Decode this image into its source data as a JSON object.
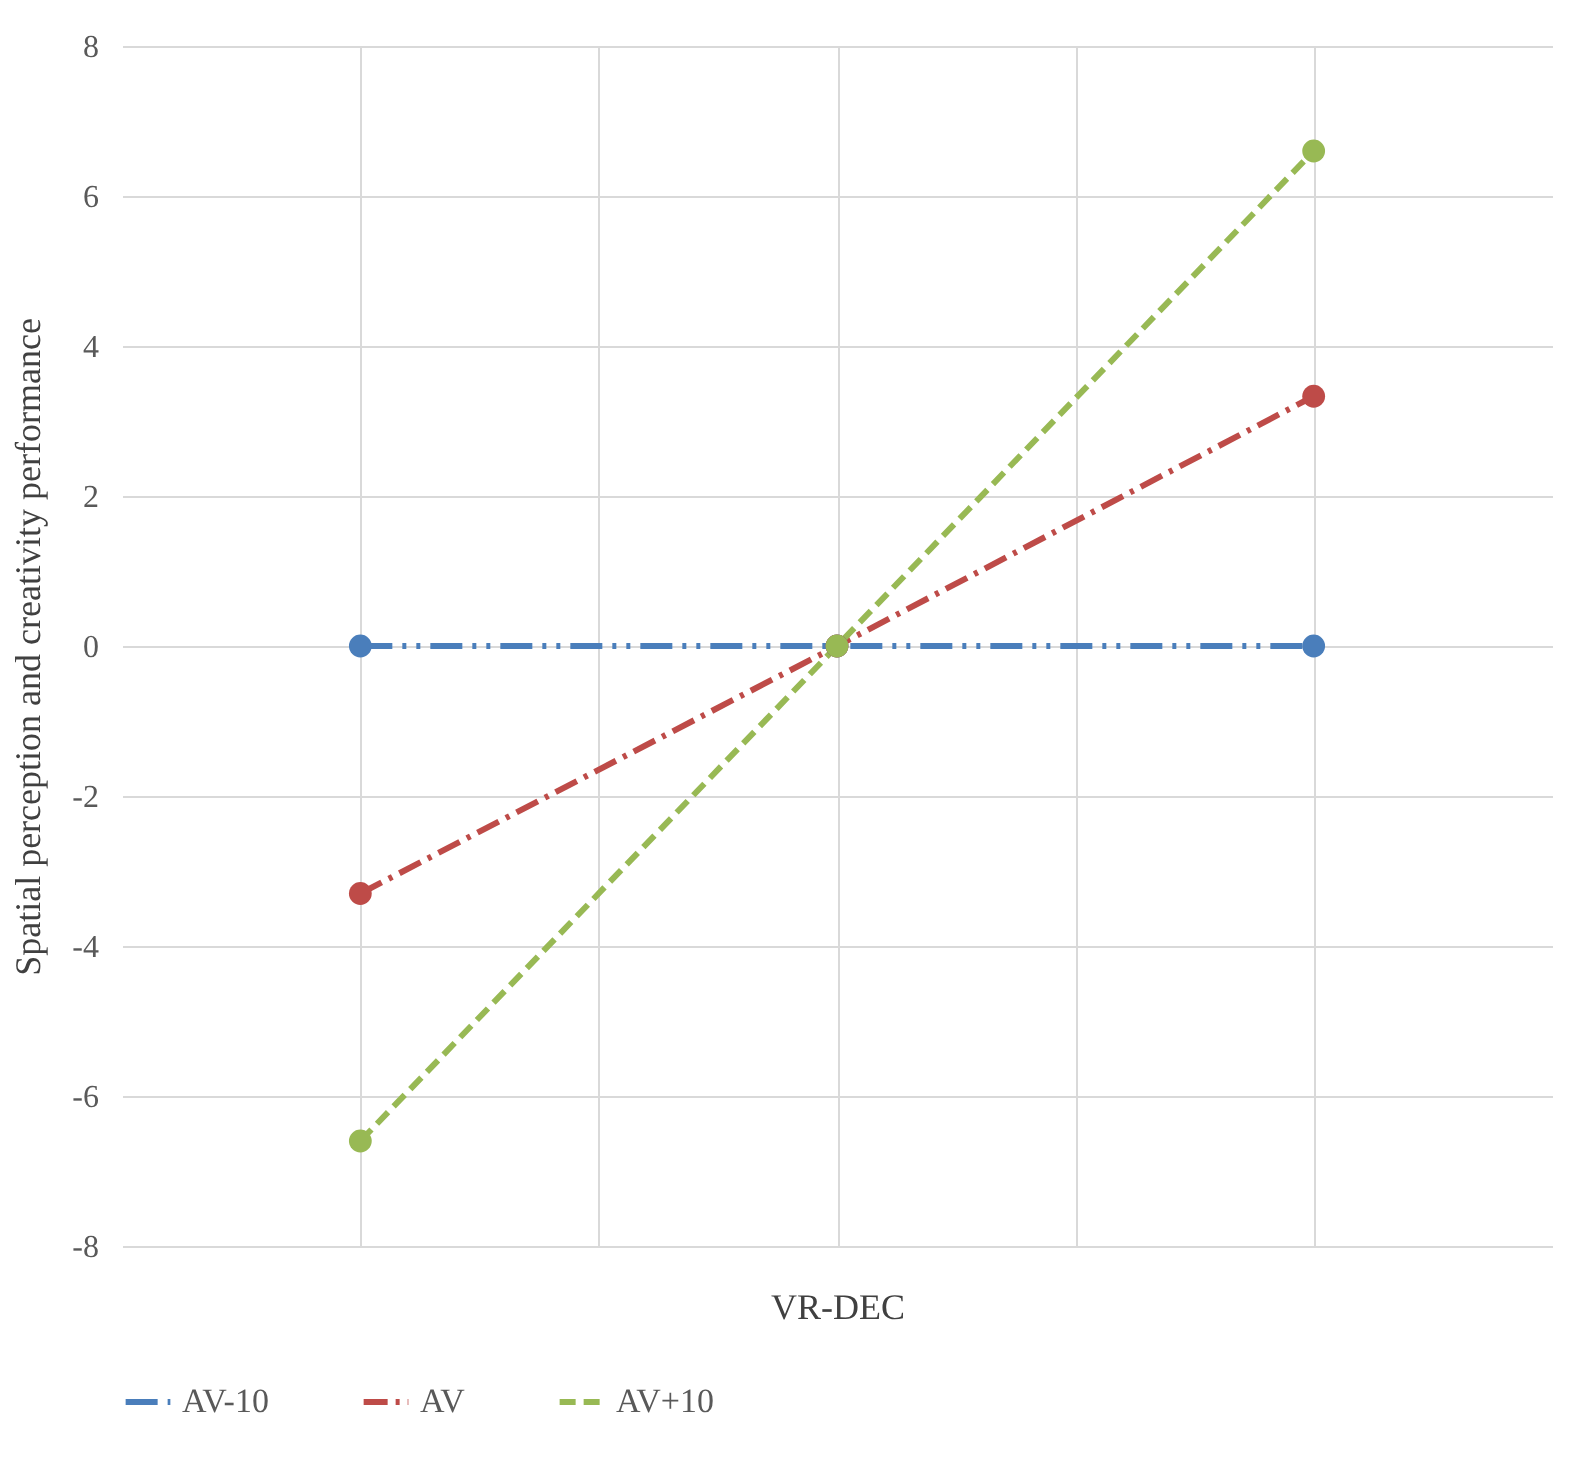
{
  "chart_data": {
    "type": "line",
    "xlabel": "VR-DEC",
    "ylabel": "Spatial perception and creativity performance",
    "categories": [
      null,
      null,
      null
    ],
    "series": [
      {
        "name": "AV-10",
        "color": "#4a7ebb",
        "line_style": "dashdotdot",
        "values": [
          0,
          0,
          0
        ]
      },
      {
        "name": "AV",
        "color": "#be4b48",
        "line_style": "dashdot",
        "values": [
          -3.3,
          0,
          3.33
        ]
      },
      {
        "name": "AV+10",
        "color": "#98b954",
        "line_style": "dashed",
        "values": [
          -6.6,
          0,
          6.6
        ]
      }
    ],
    "ylim": [
      -8,
      8
    ],
    "yticks": [
      -8,
      -6,
      -4,
      -2,
      0,
      2,
      4,
      6,
      8
    ],
    "grid": true,
    "legend": "bottom",
    "marker": "circle",
    "tick_labels": "y"
  }
}
